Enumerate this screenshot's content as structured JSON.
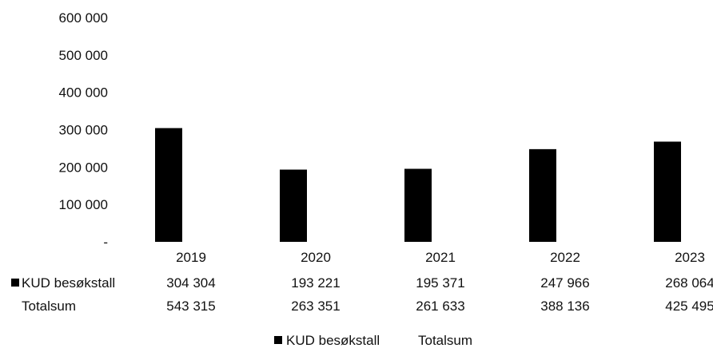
{
  "chart_data": {
    "type": "bar",
    "categories": [
      "2019",
      "2020",
      "2021",
      "2022",
      "2023"
    ],
    "series": [
      {
        "name": "KUD besøkstall",
        "values": [
          304304,
          193221,
          195371,
          247966,
          268064
        ],
        "display": [
          "304 304",
          "193 221",
          "195 371",
          "247 966",
          "268 064"
        ],
        "color": "#000000"
      },
      {
        "name": "Totalsum",
        "values": [
          543315,
          263351,
          261633,
          388136,
          425495
        ],
        "display": [
          "543 315",
          "263 351",
          "261 633",
          "388 136",
          "425 495"
        ],
        "color": "#ffffff"
      }
    ],
    "yticks": [
      {
        "value": 0,
        "label": "-"
      },
      {
        "value": 100000,
        "label": "100 000"
      },
      {
        "value": 200000,
        "label": "200 000"
      },
      {
        "value": 300000,
        "label": "300 000"
      },
      {
        "value": 400000,
        "label": "400 000"
      },
      {
        "value": 500000,
        "label": "500 000"
      },
      {
        "value": 600000,
        "label": "600 000"
      }
    ],
    "ylim": [
      0,
      600000
    ],
    "grid": false,
    "legend_position": "bottom",
    "data_table": true
  }
}
